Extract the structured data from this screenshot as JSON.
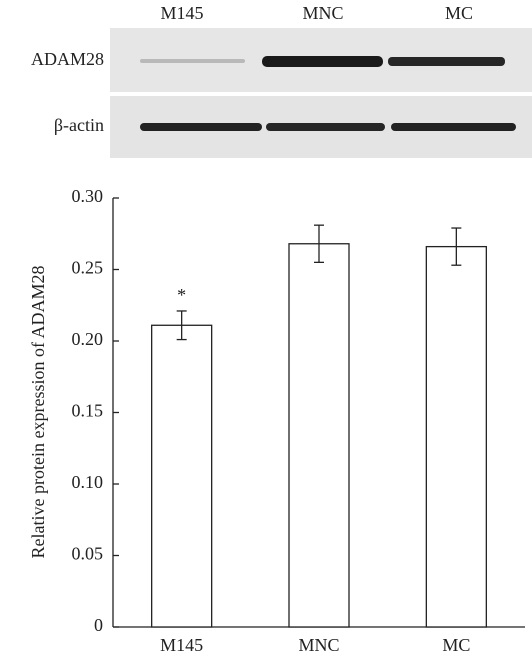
{
  "blot": {
    "lanes": [
      "M145",
      "MNC",
      "MC"
    ],
    "rows": [
      "ADAM28",
      "β-actin"
    ]
  },
  "chart_data": {
    "type": "bar",
    "y_label": "Relative protein expression of ADAM28",
    "categories": [
      "M145",
      "MNC",
      "MC"
    ],
    "values": [
      0.211,
      0.268,
      0.266
    ],
    "errors": [
      0.01,
      0.013,
      0.013
    ],
    "annotation": "*",
    "color": "#ffffff",
    "ylim": [
      0,
      0.3
    ],
    "yticks": [
      0,
      0.05,
      {
        "value": 0.1,
        "label": "0.10"
      },
      0.15,
      {
        "value": 0.2,
        "label": "0.20"
      },
      0.25,
      {
        "value": 0.3,
        "label": "0.30"
      }
    ],
    "grid": false
  }
}
